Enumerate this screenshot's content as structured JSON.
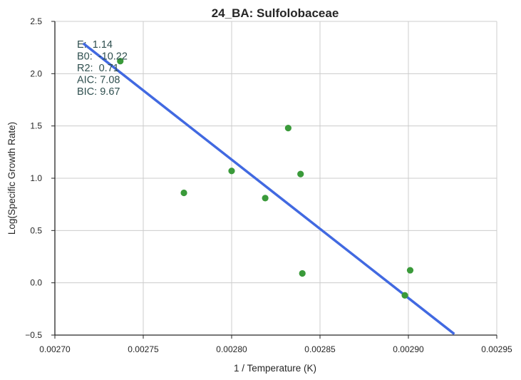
{
  "chart_data": {
    "type": "scatter",
    "title": "24_BA: Sulfolobaceae",
    "xlabel": "1 / Temperature (K)",
    "ylabel": "Log(Specific Growth Rate)",
    "xlim": [
      0.0027,
      0.00295
    ],
    "ylim": [
      -0.5,
      2.5
    ],
    "x_ticks": [
      "0.00270",
      "0.00275",
      "0.00280",
      "0.00285",
      "0.00290",
      "0.00295"
    ],
    "y_ticks": [
      "−0.5",
      "0.0",
      "0.5",
      "1.0",
      "1.5",
      "2.0",
      "2.5"
    ],
    "grid": true,
    "points": {
      "color": "#3a9a3a",
      "x": [
        0.002737,
        0.002773,
        0.0028,
        0.002819,
        0.002832,
        0.002839,
        0.00284,
        0.002898,
        0.002901
      ],
      "y": [
        2.12,
        0.86,
        1.07,
        0.81,
        1.48,
        1.04,
        0.09,
        -0.12,
        0.12
      ]
    },
    "fit_line": {
      "color": "#4169e1",
      "x": [
        0.002716,
        0.002926
      ],
      "y": [
        2.29,
        -0.49
      ]
    },
    "annotations": [
      "E:  1.14",
      "B0:  -10.22",
      "R2:  0.71",
      "AIC: 7.08",
      "BIC: 9.67"
    ]
  }
}
